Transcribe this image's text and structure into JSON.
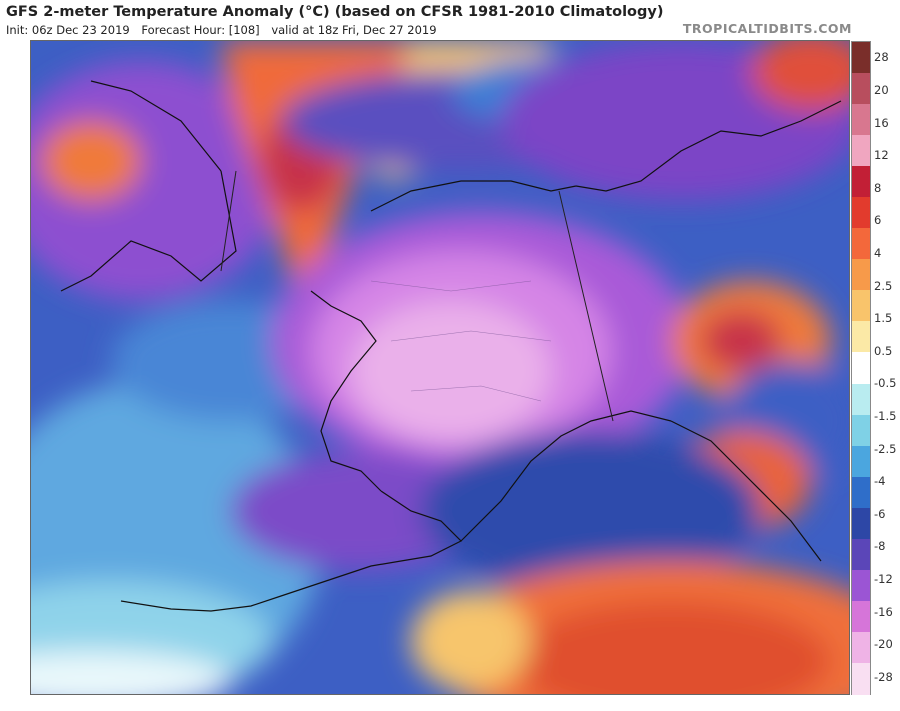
{
  "header": {
    "title": "GFS 2-meter Temperature Anomaly (°C) (based on CFSR 1981-2010 Climatology)",
    "init": "Init: 06z Dec 23 2019",
    "forecast_hour": "Forecast Hour: [108]",
    "valid": "valid at 18z Fri, Dec 27 2019",
    "brand": "TROPICALTIDBITS.COM"
  },
  "legend": {
    "labels": [
      "28",
      "20",
      "16",
      "12",
      "8",
      "6",
      "4",
      "2.5",
      "1.5",
      "0.5",
      "-0.5",
      "-1.5",
      "-2.5",
      "-4",
      "-6",
      "-8",
      "-12",
      "-16",
      "-20",
      "-28"
    ],
    "colors": [
      "#7a2e2a",
      "#b84e5e",
      "#d8778f",
      "#f0a6c0",
      "#c21f36",
      "#e23b2d",
      "#f3683b",
      "#f79a4a",
      "#f9c46b",
      "#fbe9a6",
      "#ffffff",
      "#b9ecf0",
      "#7fd1e6",
      "#4ba6df",
      "#2f6ec9",
      "#2d47a6",
      "#5b46b8",
      "#9b55d4",
      "#d675d9",
      "#efb3e6",
      "#f9dff2"
    ]
  }
}
